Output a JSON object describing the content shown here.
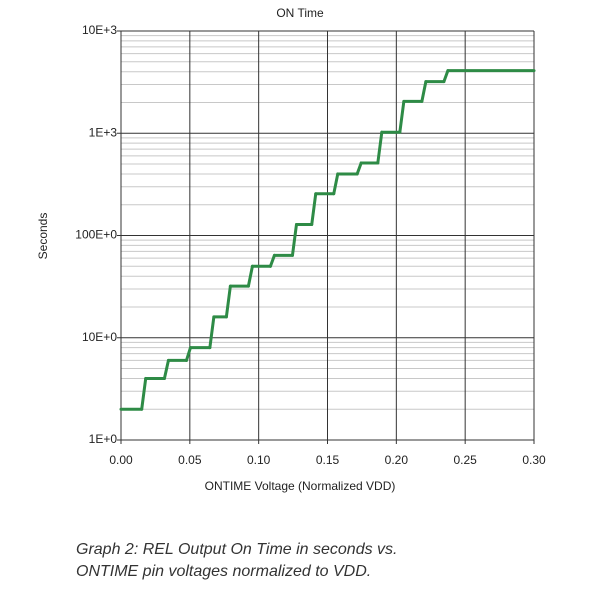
{
  "chart_data": {
    "type": "line",
    "title": "ON Time",
    "x_label": "ONTIME Voltage (Normalized VDD)",
    "y_label": "Seconds",
    "log_y": true,
    "grid": true,
    "minor_grid": true,
    "step": "post",
    "xlim": [
      0,
      0.3
    ],
    "xticks": [
      {
        "value": 0,
        "label": "0.00"
      },
      {
        "value": 0.05,
        "label": "0.05"
      },
      {
        "value": 0.1,
        "label": "0.10"
      },
      {
        "value": 0.15,
        "label": "0.15"
      },
      {
        "value": 0.2,
        "label": "0.20"
      },
      {
        "value": 0.25,
        "label": "0.25"
      },
      {
        "value": 0.3,
        "label": "0.30"
      }
    ],
    "ylim": [
      1,
      10000
    ],
    "yticks": [
      {
        "value": 1,
        "label": "1E+0"
      },
      {
        "value": 10,
        "label": "10E+0"
      },
      {
        "value": 100,
        "label": "100E+0"
      },
      {
        "value": 1000,
        "label": "1E+3"
      },
      {
        "value": 10000,
        "label": "10E+3"
      }
    ],
    "series": [
      {
        "color": "#2e8b46",
        "x": [
          0,
          0.0165,
          0.033,
          0.049,
          0.066,
          0.078,
          0.094,
          0.11,
          0.126,
          0.14,
          0.156,
          0.173,
          0.188,
          0.204,
          0.22,
          0.236
        ],
        "values": [
          2,
          4,
          6,
          8,
          16,
          32,
          50,
          64,
          128,
          256,
          400,
          512,
          1024,
          2048,
          3200,
          4096
        ]
      }
    ],
    "caption": [
      "Graph 2: REL Output On Time in seconds vs.",
      "ONTIME pin voltages normalized to VDD."
    ]
  }
}
